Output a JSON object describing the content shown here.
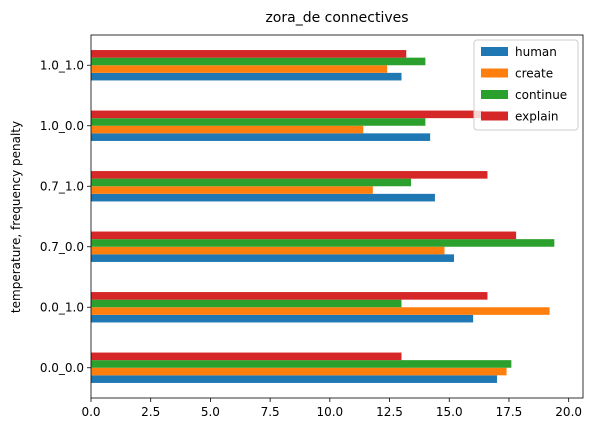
{
  "chart_data": {
    "type": "bar",
    "orientation": "horizontal",
    "title": "zora_de connectives",
    "xlabel": "",
    "ylabel": "temperature, frequency penalty",
    "categories": [
      "0.0_0.0",
      "0.0_1.0",
      "0.7_0.0",
      "0.7_1.0",
      "1.0_0.0",
      "1.0_1.0"
    ],
    "xlim": [
      0,
      20.6
    ],
    "xticks": [
      0.0,
      2.5,
      5.0,
      7.5,
      10.0,
      12.5,
      15.0,
      17.5,
      20.0
    ],
    "xtick_labels": [
      "0.0",
      "2.5",
      "5.0",
      "7.5",
      "10.0",
      "12.5",
      "15.0",
      "17.5",
      "20.0"
    ],
    "grid": false,
    "legend_position": "top-right",
    "series": [
      {
        "name": "human",
        "color": "#1f77b4",
        "values": [
          17.0,
          16.0,
          15.2,
          14.4,
          14.2,
          13.0
        ]
      },
      {
        "name": "create",
        "color": "#ff7f0e",
        "values": [
          17.4,
          19.2,
          14.8,
          11.8,
          11.4,
          12.4
        ]
      },
      {
        "name": "continue",
        "color": "#2ca02c",
        "values": [
          17.6,
          13.0,
          19.4,
          13.4,
          14.0,
          14.0
        ]
      },
      {
        "name": "explain",
        "color": "#d62728",
        "values": [
          13.0,
          16.6,
          17.8,
          16.6,
          16.4,
          13.2
        ]
      }
    ]
  }
}
